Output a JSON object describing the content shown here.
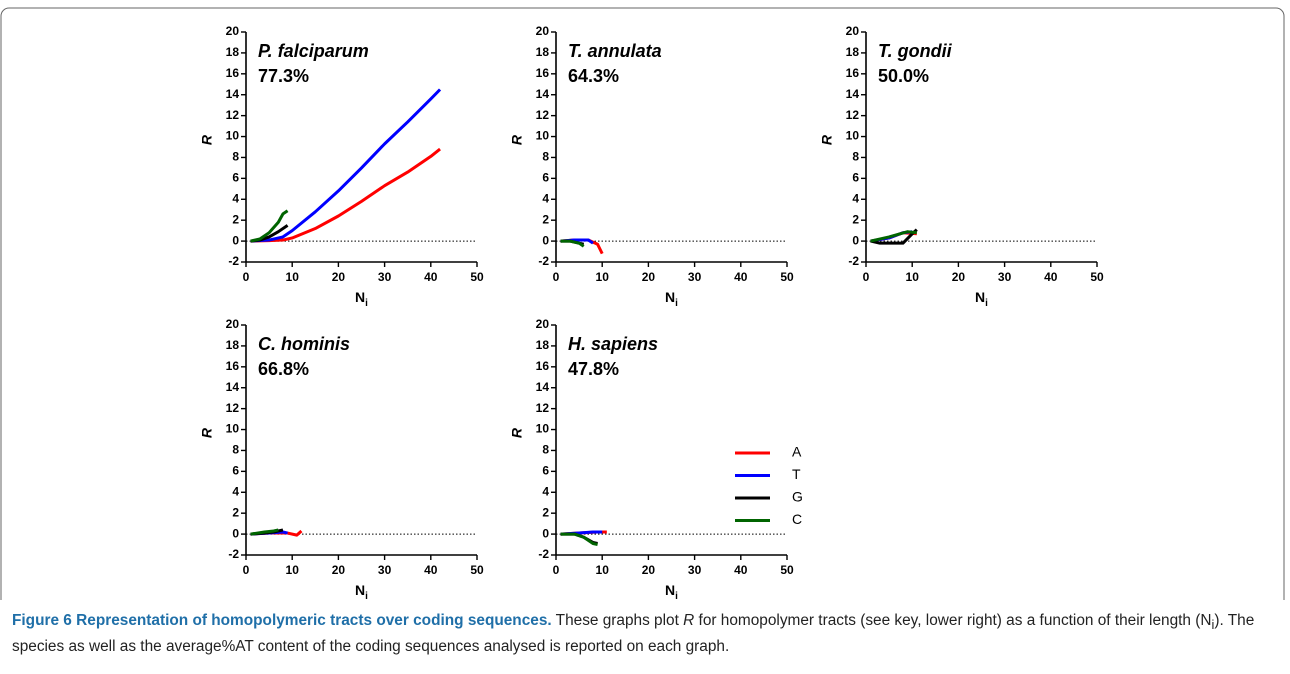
{
  "chart_data": [
    {
      "type": "line",
      "title": "P. falciparum",
      "subtitle": "77.3%",
      "ylabel": "R",
      "xlabel": {
        "base": "N",
        "sub": "i"
      },
      "xlim": [
        0,
        50
      ],
      "xticks": [
        0,
        10,
        20,
        30,
        40,
        50
      ],
      "ylim": [
        -2,
        20
      ],
      "yticks": [
        -2,
        0,
        2,
        4,
        6,
        8,
        10,
        12,
        14,
        16,
        18,
        20
      ],
      "zero_line": true,
      "series": [
        {
          "color": "#ff0000",
          "x": [
            1,
            5,
            8,
            10,
            15,
            20,
            25,
            30,
            35,
            40,
            42
          ],
          "values": [
            0,
            0.05,
            0.1,
            0.3,
            1.2,
            2.4,
            3.8,
            5.3,
            6.6,
            8.1,
            8.8
          ]
        },
        {
          "color": "#0000ff",
          "x": [
            1,
            5,
            8,
            10,
            15,
            20,
            25,
            30,
            35,
            40,
            42
          ],
          "values": [
            0,
            0.1,
            0.4,
            1,
            2.8,
            4.8,
            7,
            9.3,
            11.4,
            13.6,
            14.5
          ]
        },
        {
          "color": "#000000",
          "x": [
            1,
            3,
            5,
            7,
            9
          ],
          "values": [
            0,
            0.1,
            0.4,
            0.9,
            1.5
          ]
        },
        {
          "color": "#006400",
          "x": [
            1,
            3,
            5,
            7,
            8,
            9
          ],
          "values": [
            0,
            0.2,
            0.8,
            1.8,
            2.6,
            2.9
          ]
        }
      ]
    },
    {
      "type": "line",
      "title": "T. annulata",
      "subtitle": "64.3%",
      "ylabel": "R",
      "xlabel": {
        "base": "N",
        "sub": "i"
      },
      "xlim": [
        0,
        50
      ],
      "xticks": [
        0,
        10,
        20,
        30,
        40,
        50
      ],
      "ylim": [
        -2,
        20
      ],
      "yticks": [
        -2,
        0,
        2,
        4,
        6,
        8,
        10,
        12,
        14,
        16,
        18,
        20
      ],
      "zero_line": true,
      "series": [
        {
          "color": "#ff0000",
          "x": [
            1,
            4,
            7,
            9,
            10
          ],
          "values": [
            0,
            0.1,
            0.1,
            -0.3,
            -1.2
          ]
        },
        {
          "color": "#0000ff",
          "x": [
            1,
            4,
            7,
            8
          ],
          "values": [
            0,
            0.1,
            0.1,
            -0.2
          ]
        },
        {
          "color": "#000000",
          "x": [
            1,
            3,
            5,
            6
          ],
          "values": [
            0,
            0,
            -0.2,
            -0.3
          ]
        },
        {
          "color": "#006400",
          "x": [
            1,
            3,
            5,
            6
          ],
          "values": [
            0,
            0,
            -0.2,
            -0.5
          ]
        }
      ]
    },
    {
      "type": "line",
      "title": "T. gondii",
      "subtitle": "50.0%",
      "ylabel": "R",
      "xlabel": {
        "base": "N",
        "sub": "i"
      },
      "xlim": [
        0,
        50
      ],
      "xticks": [
        0,
        10,
        20,
        30,
        40,
        50
      ],
      "ylim": [
        -2,
        20
      ],
      "yticks": [
        -2,
        0,
        2,
        4,
        6,
        8,
        10,
        12,
        14,
        16,
        18,
        20
      ],
      "zero_line": true,
      "series": [
        {
          "color": "#ff0000",
          "x": [
            1,
            5,
            8,
            11
          ],
          "values": [
            0,
            0.3,
            0.8,
            0.7
          ]
        },
        {
          "color": "#0000ff",
          "x": [
            1,
            5,
            8,
            10
          ],
          "values": [
            0,
            0.3,
            0.8,
            0.9
          ]
        },
        {
          "color": "#000000",
          "x": [
            1,
            3,
            8,
            10,
            11
          ],
          "values": [
            0,
            -0.2,
            -0.2,
            0.7,
            1.1
          ]
        },
        {
          "color": "#006400",
          "x": [
            1,
            5,
            9,
            11
          ],
          "values": [
            0,
            0.4,
            0.9,
            0.8
          ]
        }
      ]
    },
    {
      "type": "line",
      "title": "C. hominis",
      "subtitle": "66.8%",
      "ylabel": "R",
      "xlabel": {
        "base": "N",
        "sub": "i"
      },
      "xlim": [
        0,
        50
      ],
      "xticks": [
        0,
        10,
        20,
        30,
        40,
        50
      ],
      "ylim": [
        -2,
        20
      ],
      "yticks": [
        -2,
        0,
        2,
        4,
        6,
        8,
        10,
        12,
        14,
        16,
        18,
        20
      ],
      "zero_line": true,
      "series": [
        {
          "color": "#ff0000",
          "x": [
            1,
            5,
            9,
            11,
            12
          ],
          "values": [
            0,
            0.1,
            0.1,
            -0.1,
            0.3
          ]
        },
        {
          "color": "#0000ff",
          "x": [
            1,
            5,
            8,
            9
          ],
          "values": [
            0,
            0.1,
            0.2,
            0.1
          ]
        },
        {
          "color": "#000000",
          "x": [
            1,
            4,
            6,
            8
          ],
          "values": [
            0,
            0.1,
            0.2,
            0.4
          ]
        },
        {
          "color": "#006400",
          "x": [
            1,
            4,
            6,
            7
          ],
          "values": [
            0,
            0.2,
            0.3,
            0.4
          ]
        }
      ]
    },
    {
      "type": "line",
      "title": "H. sapiens",
      "subtitle": "47.8%",
      "ylabel": "R",
      "xlabel": {
        "base": "N",
        "sub": "i"
      },
      "xlim": [
        0,
        50
      ],
      "xticks": [
        0,
        10,
        20,
        30,
        40,
        50
      ],
      "ylim": [
        -2,
        20
      ],
      "yticks": [
        -2,
        0,
        2,
        4,
        6,
        8,
        10,
        12,
        14,
        16,
        18,
        20
      ],
      "zero_line": true,
      "legend": "right",
      "series": [
        {
          "name": "A",
          "color": "#ff0000",
          "x": [
            1,
            5,
            9,
            11
          ],
          "values": [
            0,
            0.1,
            0.2,
            0.2
          ]
        },
        {
          "name": "T",
          "color": "#0000ff",
          "x": [
            1,
            5,
            8,
            10
          ],
          "values": [
            0,
            0.1,
            0.2,
            0.2
          ]
        },
        {
          "name": "G",
          "color": "#000000",
          "x": [
            1,
            4,
            6,
            8,
            9
          ],
          "values": [
            0,
            0,
            -0.3,
            -0.8,
            -0.9
          ]
        },
        {
          "name": "C",
          "color": "#006400",
          "x": [
            1,
            4,
            6,
            8,
            9
          ],
          "values": [
            0,
            0,
            -0.3,
            -0.9,
            -1
          ]
        }
      ]
    }
  ],
  "caption": {
    "label": "Figure 6 Representation of homopolymeric tracts over coding sequences.",
    "body": [
      "These graphs plot ",
      "R",
      " for homopolymer tracts (see key, lower right) as a function of their length (N",
      "i",
      "). The species as well as the average%AT content of the coding sequences analysed is reported on each graph."
    ]
  }
}
